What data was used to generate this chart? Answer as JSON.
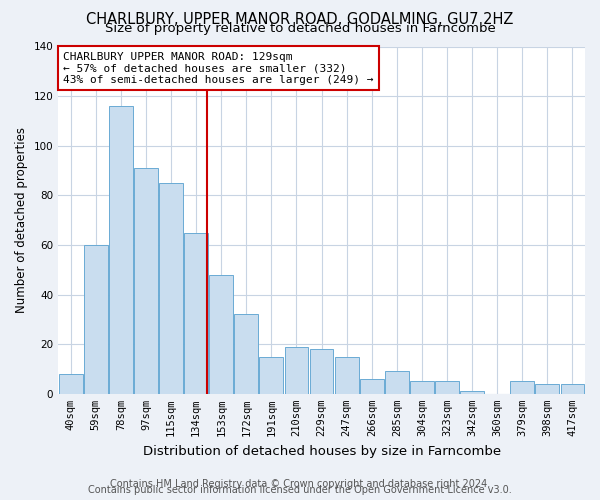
{
  "title": "CHARLBURY, UPPER MANOR ROAD, GODALMING, GU7 2HZ",
  "subtitle": "Size of property relative to detached houses in Farncombe",
  "xlabel": "Distribution of detached houses by size in Farncombe",
  "ylabel": "Number of detached properties",
  "categories": [
    "40sqm",
    "59sqm",
    "78sqm",
    "97sqm",
    "115sqm",
    "134sqm",
    "153sqm",
    "172sqm",
    "191sqm",
    "210sqm",
    "229sqm",
    "247sqm",
    "266sqm",
    "285sqm",
    "304sqm",
    "323sqm",
    "342sqm",
    "360sqm",
    "379sqm",
    "398sqm",
    "417sqm"
  ],
  "values": [
    8,
    60,
    116,
    91,
    85,
    65,
    48,
    32,
    15,
    19,
    18,
    15,
    6,
    9,
    5,
    5,
    1,
    0,
    5,
    4,
    4
  ],
  "bar_color": "#c9ddef",
  "bar_edge_color": "#6aaad4",
  "vline_color": "#cc0000",
  "vline_x": 5.42,
  "annotation_title": "CHARLBURY UPPER MANOR ROAD: 129sqm",
  "annotation_line1": "← 57% of detached houses are smaller (332)",
  "annotation_line2": "43% of semi-detached houses are larger (249) →",
  "annotation_box_color": "#ffffff",
  "annotation_box_edge_color": "#cc0000",
  "ylim": [
    0,
    140
  ],
  "yticks": [
    0,
    20,
    40,
    60,
    80,
    100,
    120,
    140
  ],
  "footer_line1": "Contains HM Land Registry data © Crown copyright and database right 2024.",
  "footer_line2": "Contains public sector information licensed under the Open Government Licence v3.0.",
  "background_color": "#edf1f7",
  "plot_background_color": "#ffffff",
  "grid_color": "#c8d4e3",
  "title_fontsize": 10.5,
  "subtitle_fontsize": 9.5,
  "xlabel_fontsize": 9.5,
  "ylabel_fontsize": 8.5,
  "tick_fontsize": 7.5,
  "annotation_fontsize": 8,
  "footer_fontsize": 7
}
